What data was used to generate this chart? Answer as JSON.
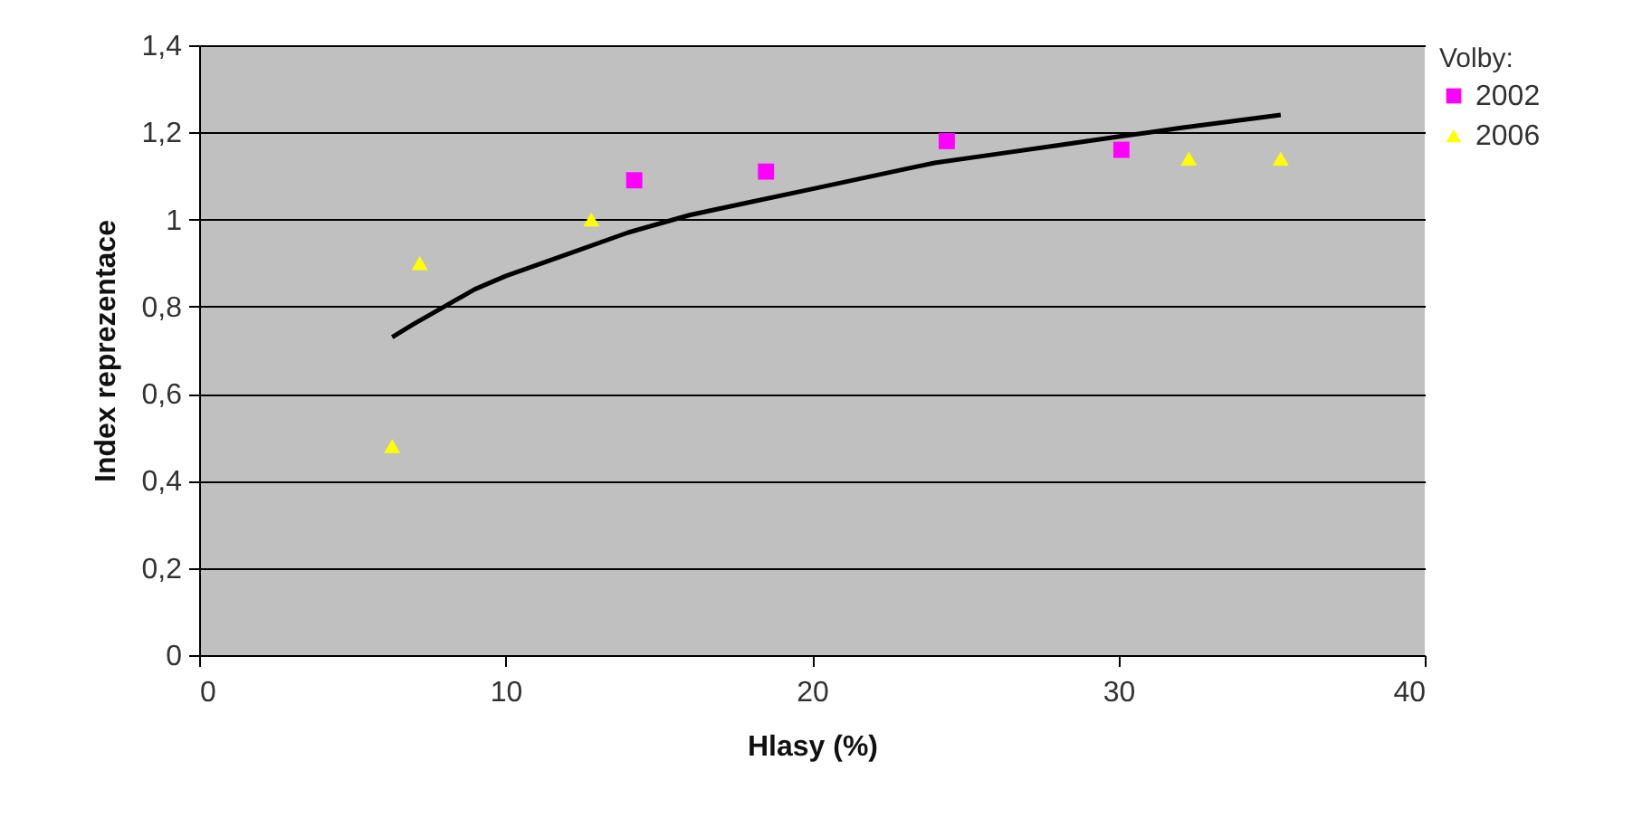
{
  "chart_data": {
    "type": "scatter",
    "xlabel": "Hlasy (%)",
    "ylabel": "Index reprezentace",
    "legend_title": "Volby:",
    "legend": "right",
    "xlim": [
      0,
      40
    ],
    "xticks": [
      0,
      10,
      20,
      30,
      40
    ],
    "ylim": [
      0,
      1.4
    ],
    "yticks": [
      {
        "value": 0,
        "label": "0"
      },
      {
        "value": 0.2,
        "label": "0,2"
      },
      {
        "value": 0.4,
        "label": "0,4"
      },
      {
        "value": 0.6,
        "label": "0,6"
      },
      {
        "value": 0.8,
        "label": "0,8"
      },
      {
        "value": 1,
        "label": "1"
      },
      {
        "value": 1.2,
        "label": "1,2"
      },
      {
        "value": 1.4,
        "label": "1,4"
      }
    ],
    "grid": "y",
    "series": [
      {
        "name": "2002",
        "color": "#ff00ff",
        "marker": "square",
        "x": [
          14.2,
          18.5,
          24.4,
          30.1
        ],
        "values": [
          1.09,
          1.11,
          1.18,
          1.16
        ]
      },
      {
        "name": "2006",
        "color": "#ffff00",
        "marker": "triangle",
        "x": [
          6.3,
          7.2,
          12.8,
          32.3,
          35.3
        ],
        "values": [
          0.48,
          0.9,
          1.0,
          1.14,
          1.14
        ]
      },
      {
        "type": "line",
        "color": "#000000",
        "marker": "none",
        "x": [
          6.3,
          7,
          8,
          9,
          10,
          12,
          14,
          16,
          18,
          20,
          22,
          24,
          26,
          28,
          30,
          32,
          35.3
        ],
        "values": [
          0.73,
          0.76,
          0.8,
          0.84,
          0.87,
          0.92,
          0.97,
          1.01,
          1.04,
          1.07,
          1.1,
          1.13,
          1.15,
          1.17,
          1.19,
          1.21,
          1.24
        ]
      }
    ]
  }
}
